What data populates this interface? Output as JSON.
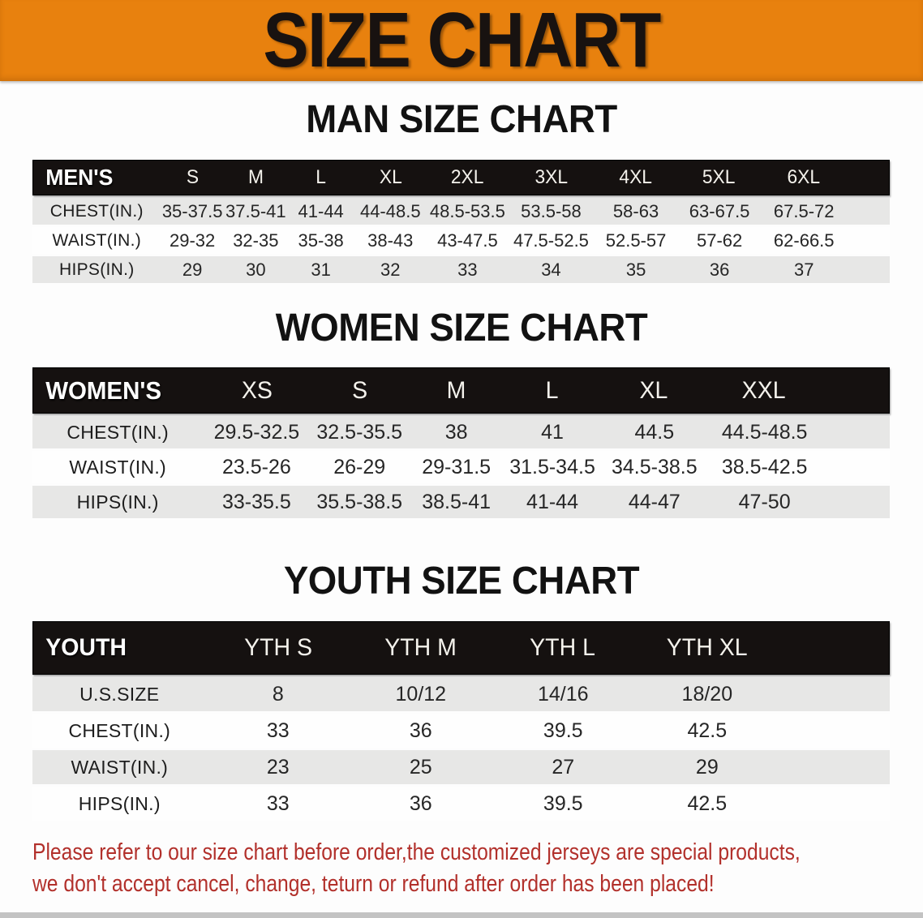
{
  "banner": {
    "title": "SIZE CHART"
  },
  "men": {
    "heading": "MAN SIZE CHART",
    "label": "MEN'S",
    "sizes": [
      "S",
      "M",
      "L",
      "XL",
      "2XL",
      "3XL",
      "4XL",
      "5XL",
      "6XL"
    ],
    "rows": [
      {
        "label": "CHEST(IN.)",
        "values": [
          "35-37.5",
          "37.5-41",
          "41-44",
          "44-48.5",
          "48.5-53.5",
          "53.5-58",
          "58-63",
          "63-67.5",
          "67.5-72"
        ]
      },
      {
        "label": "WAIST(IN.)",
        "values": [
          "29-32",
          "32-35",
          "35-38",
          "38-43",
          "43-47.5",
          "47.5-52.5",
          "52.5-57",
          "57-62",
          "62-66.5"
        ]
      },
      {
        "label": "HIPS(IN.)",
        "values": [
          "29",
          "30",
          "31",
          "32",
          "33",
          "34",
          "35",
          "36",
          "37"
        ]
      }
    ]
  },
  "women": {
    "heading": "WOMEN SIZE CHART",
    "label": "WOMEN'S",
    "sizes": [
      "XS",
      "S",
      "M",
      "L",
      "XL",
      "XXL"
    ],
    "rows": [
      {
        "label": "CHEST(IN.)",
        "values": [
          "29.5-32.5",
          "32.5-35.5",
          "38",
          "41",
          "44.5",
          "44.5-48.5"
        ]
      },
      {
        "label": "WAIST(IN.)",
        "values": [
          "23.5-26",
          "26-29",
          "29-31.5",
          "31.5-34.5",
          "34.5-38.5",
          "38.5-42.5"
        ]
      },
      {
        "label": "HIPS(IN.)",
        "values": [
          "33-35.5",
          "35.5-38.5",
          "38.5-41",
          "41-44",
          "44-47",
          "47-50"
        ]
      }
    ]
  },
  "youth": {
    "heading": "YOUTH SIZE CHART",
    "label": "YOUTH",
    "sizes": [
      "YTH S",
      "YTH M",
      "YTH L",
      "YTH XL"
    ],
    "rows": [
      {
        "label": "U.S.SIZE",
        "values": [
          "8",
          "10/12",
          "14/16",
          "18/20"
        ]
      },
      {
        "label": "CHEST(IN.)",
        "values": [
          "33",
          "36",
          "39.5",
          "42.5"
        ]
      },
      {
        "label": "WAIST(IN.)",
        "values": [
          "23",
          "25",
          "27",
          "29"
        ]
      },
      {
        "label": "HIPS(IN.)",
        "values": [
          "33",
          "36",
          "39.5",
          "42.5"
        ]
      }
    ]
  },
  "disclaimer": {
    "line1": "Please refer to our size chart before order,the customized jerseys are special products,",
    "line2": "we don't accept cancel, change, teturn or refund after order has been placed!"
  },
  "colors": {
    "banner_bg": "#e8810e",
    "header_bg": "#151110",
    "row_stripe": "#e7e7e6",
    "disclaimer_red": "#b2302b"
  }
}
